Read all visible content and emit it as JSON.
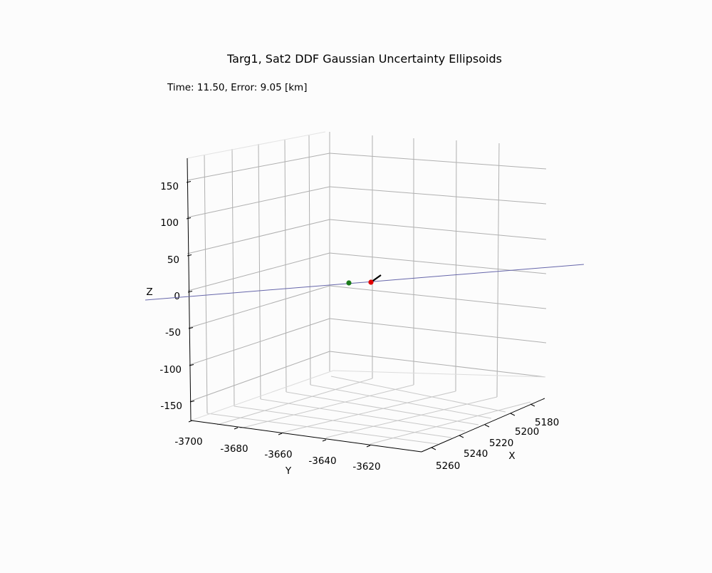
{
  "chart_data": {
    "type": "scatter",
    "title": "Targ1, Sat2 DDF Gaussian Uncertainty Ellipsoids",
    "subtitle": "Time: 11.50, Error: 9.05 [km]",
    "xlabel": "X",
    "ylabel": "Y",
    "zlabel": "Z",
    "x_ticks": [
      5260,
      5240,
      5220,
      5200,
      5180
    ],
    "y_ticks": [
      -3700,
      -3680,
      -3660,
      -3640,
      -3620
    ],
    "z_ticks": [
      150,
      100,
      50,
      0,
      -50,
      -100,
      -150
    ],
    "grid": true,
    "colors": {
      "estimate": "#1a7a1a",
      "truth": "#e00000",
      "track": "#6666aa",
      "velocity": "#000000"
    }
  }
}
